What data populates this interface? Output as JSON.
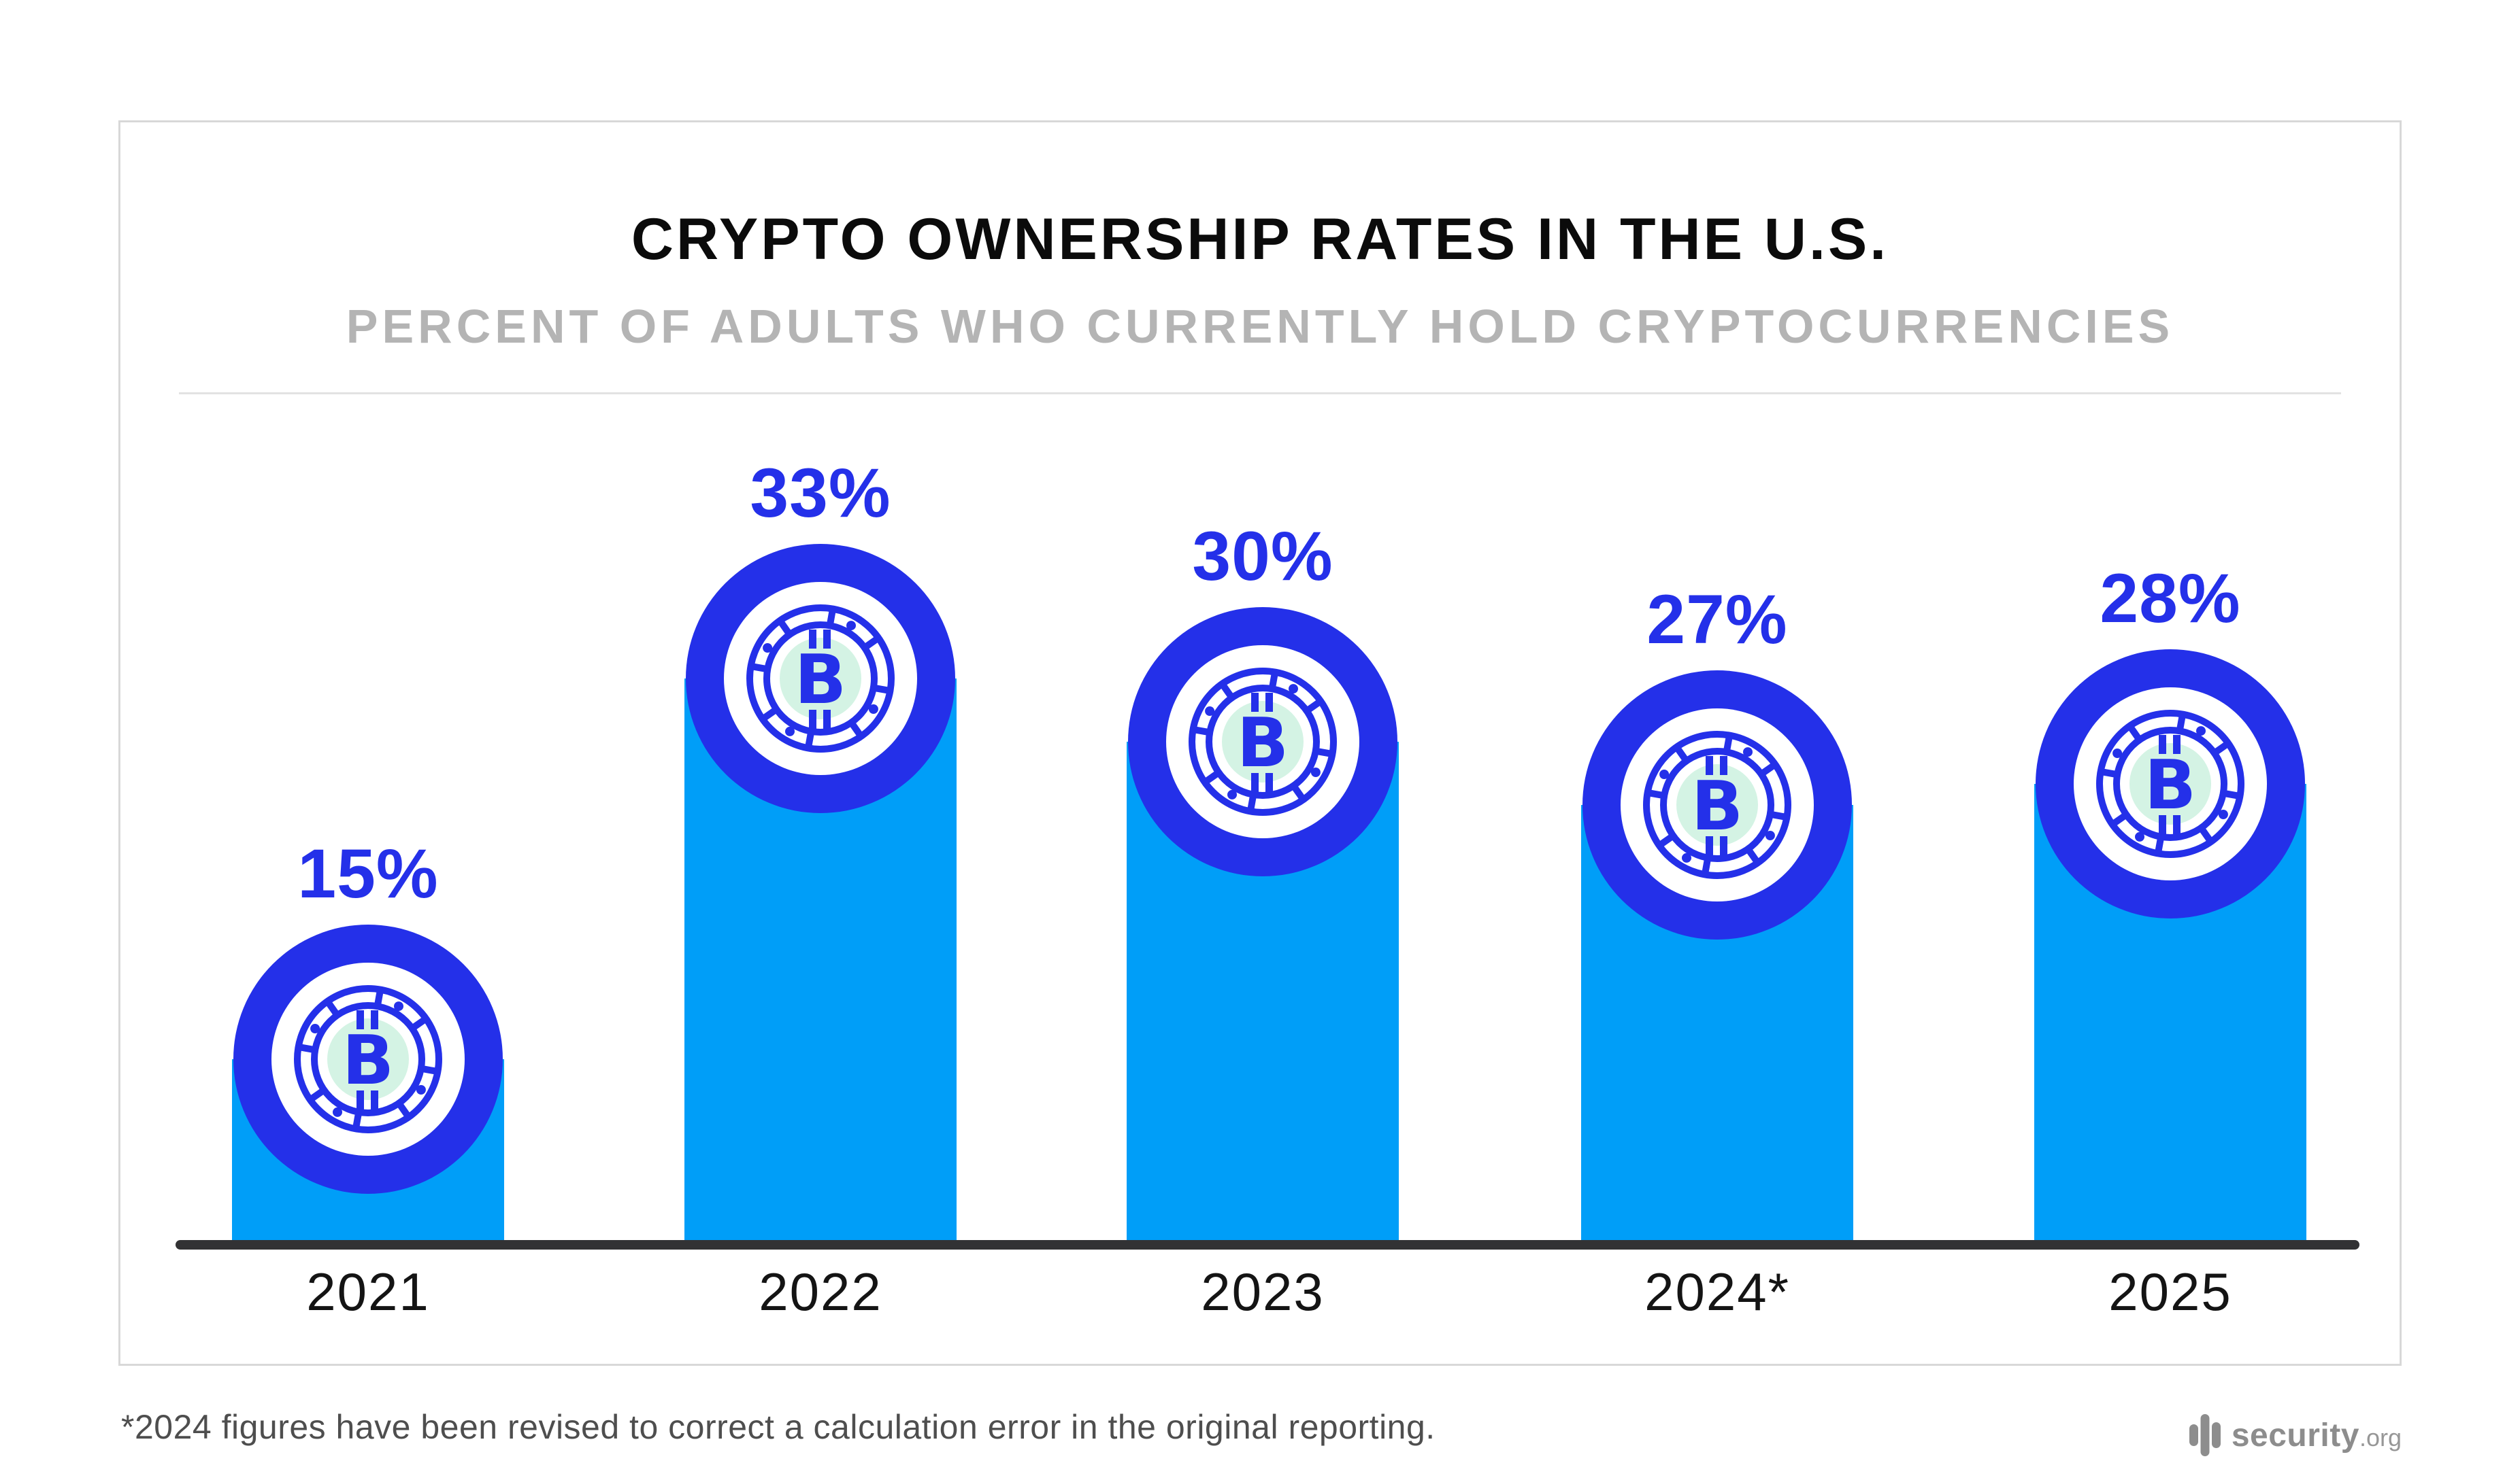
{
  "chart_data": {
    "type": "bar",
    "title": "CRYPTO OWNERSHIP RATES IN THE U.S.",
    "subtitle": "PERCENT OF ADULTS WHO CURRENTLY HOLD CRYPTOCURRENCIES",
    "categories": [
      "2021",
      "2022",
      "2023",
      "2024*",
      "2025"
    ],
    "values": [
      15,
      33,
      30,
      27,
      28
    ],
    "labels": [
      "15%",
      "33%",
      "30%",
      "27%",
      "28%"
    ],
    "xlabel": "",
    "ylabel": "",
    "ylim": [
      0,
      35
    ],
    "grid": false,
    "legend": false,
    "bar_color": "#009EF8",
    "accent_color": "#2430E9",
    "coin_center_color": "#D4F3E4",
    "axis_color": "#323234"
  },
  "footnote": "*2024 figures have been revised to correct a calculation error in the original reporting.",
  "logo": {
    "name": "security",
    "tld": ".org"
  }
}
